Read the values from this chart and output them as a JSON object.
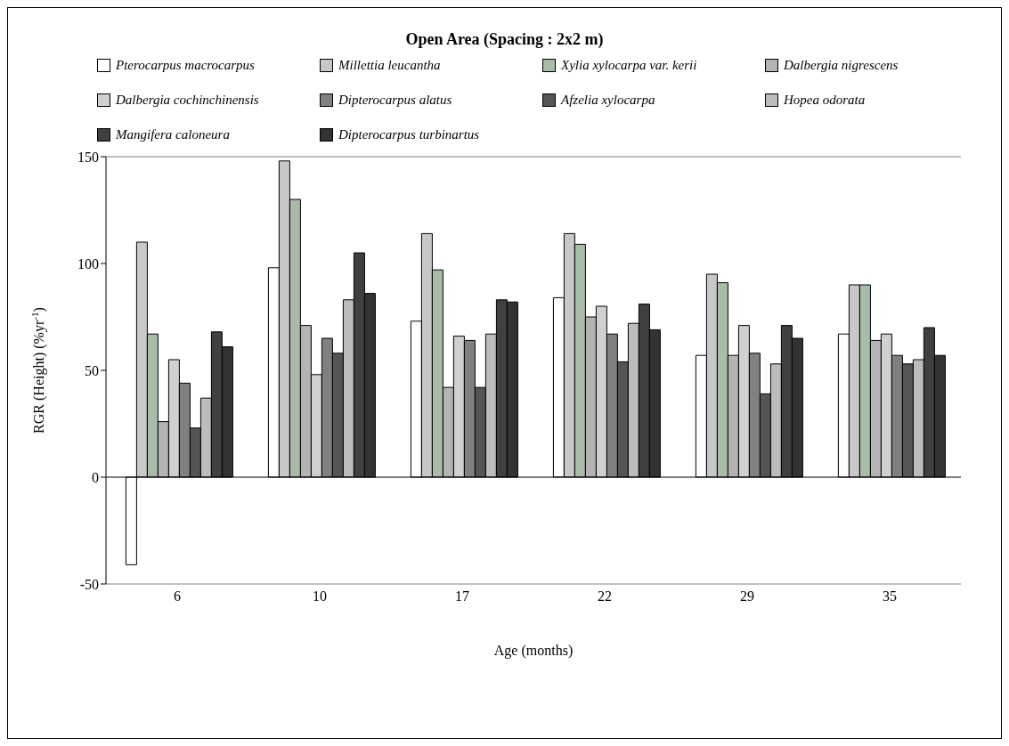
{
  "chart_data": {
    "type": "bar",
    "title": "Open  Area (Spacing : 2x2 m)",
    "xlabel": "Age (months)",
    "ylabel": "RGR (Height) (%yr$^{-1}$)",
    "categories": [
      "6",
      "10",
      "17",
      "22",
      "29",
      "35"
    ],
    "ylim": [
      -50,
      150
    ],
    "yticks": [
      -50,
      0,
      50,
      100,
      150
    ],
    "grid": "y",
    "legend": "top",
    "series": [
      {
        "name": "Pterocarpus macrocarpus",
        "color": "#ffffff",
        "values": [
          -41,
          98,
          73,
          84,
          57,
          67
        ]
      },
      {
        "name": "Millettia leucantha",
        "color": "#c8c8c8",
        "values": [
          110,
          148,
          114,
          114,
          95,
          90
        ]
      },
      {
        "name": "Xylia xylocarpa var. kerii",
        "color": "#a8bca8",
        "values": [
          67,
          130,
          97,
          109,
          91,
          90
        ]
      },
      {
        "name": "Dalbergia nigrescens",
        "color": "#b4b4b4",
        "values": [
          26,
          71,
          42,
          75,
          57,
          64
        ]
      },
      {
        "name": "Dalbergia cochinchinensis",
        "color": "#d0d0d0",
        "values": [
          55,
          48,
          66,
          80,
          71,
          67
        ]
      },
      {
        "name": "Dipterocarpus alatus",
        "color": "#808080",
        "values": [
          44,
          65,
          64,
          67,
          58,
          57
        ]
      },
      {
        "name": "Afzelia xylocarpa",
        "color": "#555555",
        "values": [
          23,
          58,
          42,
          54,
          39,
          53
        ]
      },
      {
        "name": "Hopea odorata",
        "color": "#bcbcbc",
        "values": [
          37,
          83,
          67,
          72,
          53,
          55
        ]
      },
      {
        "name": "Mangifera  caloneura",
        "color": "#404040",
        "values": [
          68,
          105,
          83,
          81,
          71,
          70
        ]
      },
      {
        "name": "Dipterocarpus turbinartus",
        "color": "#333333",
        "values": [
          61,
          86,
          82,
          69,
          65,
          57
        ]
      }
    ]
  }
}
